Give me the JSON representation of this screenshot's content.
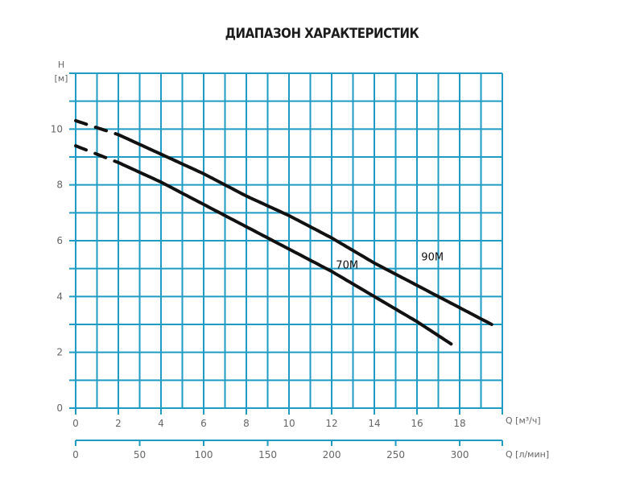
{
  "title": "ДИАПАЗОН ХАРАКТЕРИСТИК",
  "colors": {
    "grid": "#1f9bc4",
    "curve": "#111111",
    "tick_text": "#666666",
    "title_text": "#1b1b1b"
  },
  "axes": {
    "y_label_top": "H",
    "y_label_unit": "[м]",
    "x_label": "Q [м³/ч]",
    "x2_label": "Q [л/мин]"
  },
  "chart_data": {
    "type": "line",
    "title": "ДИАПАЗОН ХАРАКТЕРИСТИК",
    "xlabel": "Q [м³/ч]",
    "x2label": "Q [л/мин]",
    "ylabel": "H [м]",
    "xlim": [
      0,
      20
    ],
    "ylim": [
      0,
      12
    ],
    "x2lim": [
      0,
      333.3
    ],
    "grid": true,
    "x_ticks": [
      0,
      2,
      4,
      6,
      8,
      10,
      12,
      14,
      16,
      18
    ],
    "x_tick_labels": [
      "0",
      "2",
      "4",
      "6",
      "8",
      "10",
      "12",
      "14",
      "16",
      "18"
    ],
    "x2_ticks": [
      0,
      50,
      100,
      150,
      200,
      250,
      300
    ],
    "x2_tick_labels": [
      "0",
      "50",
      "100",
      "150",
      "200",
      "250",
      "300"
    ],
    "y_ticks": [
      0,
      2,
      4,
      6,
      8,
      10
    ],
    "y_tick_labels": [
      "0",
      "2",
      "4",
      "6",
      "8",
      "10"
    ],
    "series": [
      {
        "name": "90M",
        "label_pos": [
          16.2,
          5.3
        ],
        "dashed_until": 2,
        "x": [
          0,
          2,
          4,
          6,
          8,
          10,
          12,
          14,
          16,
          18,
          19.5
        ],
        "y": [
          10.3,
          9.8,
          9.1,
          8.4,
          7.6,
          6.9,
          6.1,
          5.2,
          4.4,
          3.6,
          3.0
        ]
      },
      {
        "name": "70M",
        "label_pos": [
          12.2,
          5.0
        ],
        "dashed_until": 2,
        "x": [
          0,
          2,
          4,
          6,
          8,
          10,
          12,
          14,
          16,
          17.6
        ],
        "y": [
          9.4,
          8.8,
          8.1,
          7.3,
          6.5,
          5.7,
          4.9,
          4.0,
          3.1,
          2.3
        ]
      }
    ]
  }
}
